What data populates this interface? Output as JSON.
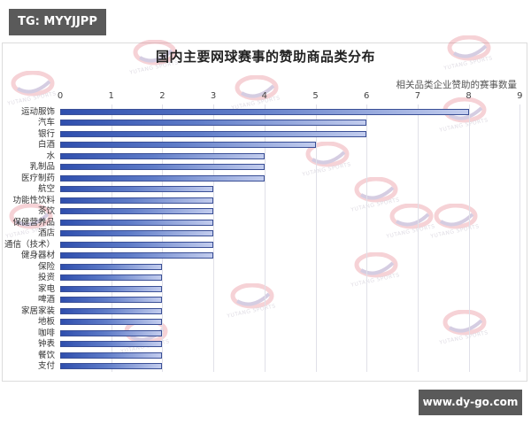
{
  "badges": {
    "top": "TG: MYYJJPP",
    "bottom": "www.dy-go.com"
  },
  "watermark": {
    "text": "YUTANG SPORTS",
    "colors": [
      "#e06070",
      "#6a4f9a"
    ]
  },
  "colors": {
    "bar_dark": "#2f4fae",
    "bar_light": "#c3cdee",
    "bar_border": "#3a4f96",
    "gridline": "#e0e0e8"
  },
  "chart_data": {
    "type": "bar",
    "orientation": "horizontal",
    "title": "国内主要网球赛事的赞助商品类分布",
    "xlabel": "相关品类企业赞助的赛事数量",
    "ylabel": "",
    "xlim": [
      0,
      9
    ],
    "xticks": [
      "0",
      "1",
      "2",
      "3",
      "4",
      "5",
      "6",
      "7",
      "8",
      "9"
    ],
    "x_axis_position": "top",
    "grid": true,
    "legend": null,
    "categories": [
      "运动服饰",
      "汽车",
      "银行",
      "白酒",
      "水",
      "乳制品",
      "医疗制药",
      "航空",
      "功能性饮料",
      "茶饮",
      "保健营养品",
      "酒店",
      "通信（技术）",
      "健身器材",
      "保险",
      "投资",
      "家电",
      "啤酒",
      "家居家装",
      "地板",
      "咖啡",
      "钟表",
      "餐饮",
      "支付"
    ],
    "values": [
      8,
      6,
      6,
      5,
      4,
      4,
      4,
      3,
      3,
      3,
      3,
      3,
      3,
      3,
      2,
      2,
      2,
      2,
      2,
      2,
      2,
      2,
      2,
      2
    ]
  }
}
